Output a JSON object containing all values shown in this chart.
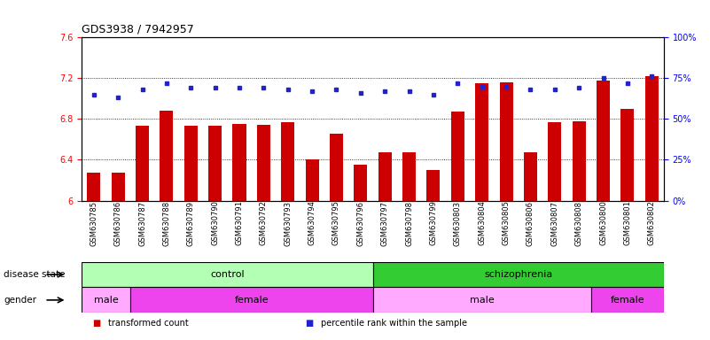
{
  "title": "GDS3938 / 7942957",
  "samples": [
    "GSM630785",
    "GSM630786",
    "GSM630787",
    "GSM630788",
    "GSM630789",
    "GSM630790",
    "GSM630791",
    "GSM630792",
    "GSM630793",
    "GSM630794",
    "GSM630795",
    "GSM630796",
    "GSM630797",
    "GSM630798",
    "GSM630799",
    "GSM630803",
    "GSM630804",
    "GSM630805",
    "GSM630806",
    "GSM630807",
    "GSM630808",
    "GSM630800",
    "GSM630801",
    "GSM630802"
  ],
  "bar_values": [
    6.27,
    6.27,
    6.73,
    6.88,
    6.73,
    6.73,
    6.75,
    6.74,
    6.77,
    6.4,
    6.66,
    6.35,
    6.47,
    6.47,
    6.3,
    6.87,
    7.15,
    7.16,
    6.47,
    6.77,
    6.78,
    7.18,
    6.9,
    7.22
  ],
  "dot_values": [
    65,
    63,
    68,
    72,
    69,
    69,
    69,
    69,
    68,
    67,
    68,
    66,
    67,
    67,
    65,
    72,
    70,
    70,
    68,
    68,
    69,
    75,
    72,
    76
  ],
  "bar_color": "#cc0000",
  "dot_color": "#2222cc",
  "ylim_left": [
    6.0,
    7.6
  ],
  "ylim_right": [
    0,
    100
  ],
  "yticks_left": [
    6.0,
    6.4,
    6.8,
    7.2,
    7.6
  ],
  "ytick_labels_left": [
    "6",
    "6.4",
    "6.8",
    "7.2",
    "7.6"
  ],
  "yticks_right": [
    0,
    25,
    50,
    75,
    100
  ],
  "ytick_labels_right": [
    "0%",
    "25%",
    "50%",
    "75%",
    "100%"
  ],
  "grid_values": [
    6.4,
    6.8,
    7.2
  ],
  "disease_state_groups": [
    {
      "label": "control",
      "start": 0,
      "end": 12,
      "color": "#b3ffb3"
    },
    {
      "label": "schizophrenia",
      "start": 12,
      "end": 24,
      "color": "#33cc33"
    }
  ],
  "gender_groups": [
    {
      "label": "male",
      "start": 0,
      "end": 2,
      "color": "#ffaaff"
    },
    {
      "label": "female",
      "start": 2,
      "end": 12,
      "color": "#ee44ee"
    },
    {
      "label": "male",
      "start": 12,
      "end": 21,
      "color": "#ffaaff"
    },
    {
      "label": "female",
      "start": 21,
      "end": 24,
      "color": "#ee44ee"
    }
  ],
  "disease_state_label": "disease state",
  "gender_label": "gender",
  "bar_width": 0.55,
  "background_color": "#ffffff",
  "plot_bg_color": "#ffffff"
}
